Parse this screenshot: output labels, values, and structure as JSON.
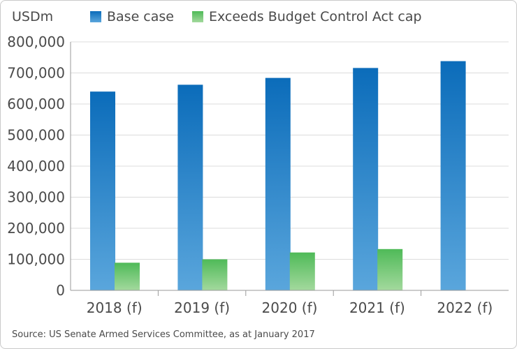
{
  "chart_data": {
    "type": "bar",
    "ylabel": "USDm",
    "categories": [
      "2018 (f)",
      "2019 (f)",
      "2020 (f)",
      "2021 (f)",
      "2022 (f)"
    ],
    "series": [
      {
        "name": "Base case",
        "values": [
          640000,
          662000,
          684000,
          716000,
          738000
        ],
        "color": "#0b6cba"
      },
      {
        "name": "Exceeds Budget Control Act cap",
        "values": [
          89000,
          100000,
          122000,
          133000,
          0
        ],
        "color": "#4fba58"
      }
    ],
    "ylim": [
      0,
      800000
    ],
    "yticks": [
      0,
      100000,
      200000,
      300000,
      400000,
      500000,
      600000,
      700000,
      800000
    ],
    "ytick_labels": [
      "0",
      "100,000",
      "200,000",
      "300,000",
      "400,000",
      "500,000",
      "600,000",
      "700,000",
      "800,000"
    ],
    "grid": true,
    "legend_position": "top"
  },
  "source": "Source: US Senate Armed Services Committee, as at January 2017"
}
